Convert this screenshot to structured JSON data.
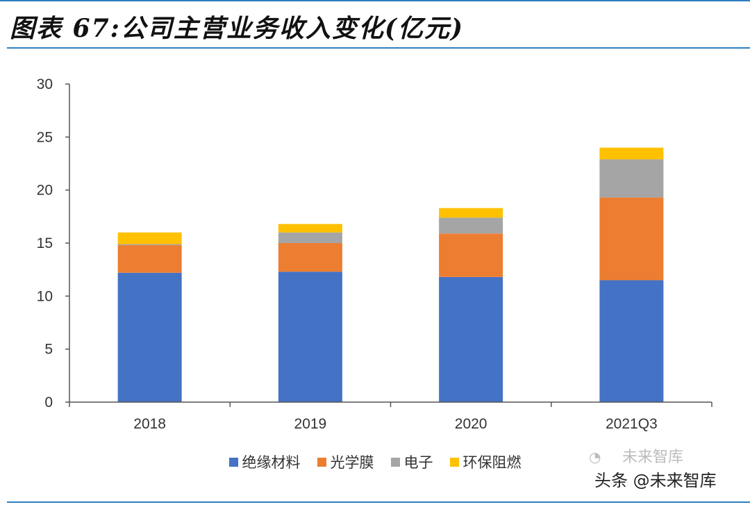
{
  "page_title": "图表 67:公司主营业务收入变化(亿元)",
  "chart_data": {
    "type": "bar",
    "stacked": true,
    "categories": [
      "2018",
      "2019",
      "2020",
      "2021Q3"
    ],
    "series": [
      {
        "name": "绝缘材料",
        "color": "#4472c4",
        "values": [
          12.2,
          12.3,
          11.8,
          11.5
        ]
      },
      {
        "name": "光学膜",
        "color": "#ed7d31",
        "values": [
          2.6,
          2.7,
          4.1,
          7.8
        ]
      },
      {
        "name": "电子",
        "color": "#a5a5a5",
        "values": [
          0.1,
          1.0,
          1.5,
          3.6
        ]
      },
      {
        "name": "环保阻燃",
        "color": "#ffc000",
        "values": [
          1.1,
          0.8,
          0.9,
          1.1
        ]
      }
    ],
    "ylim": [
      0,
      30
    ],
    "yticks": [
      0,
      5,
      10,
      15,
      20,
      25,
      30
    ],
    "grid": false,
    "legend_position": "bottom"
  },
  "watermark": {
    "faint_text": "未来智库",
    "text": "头条 @未来智库"
  }
}
